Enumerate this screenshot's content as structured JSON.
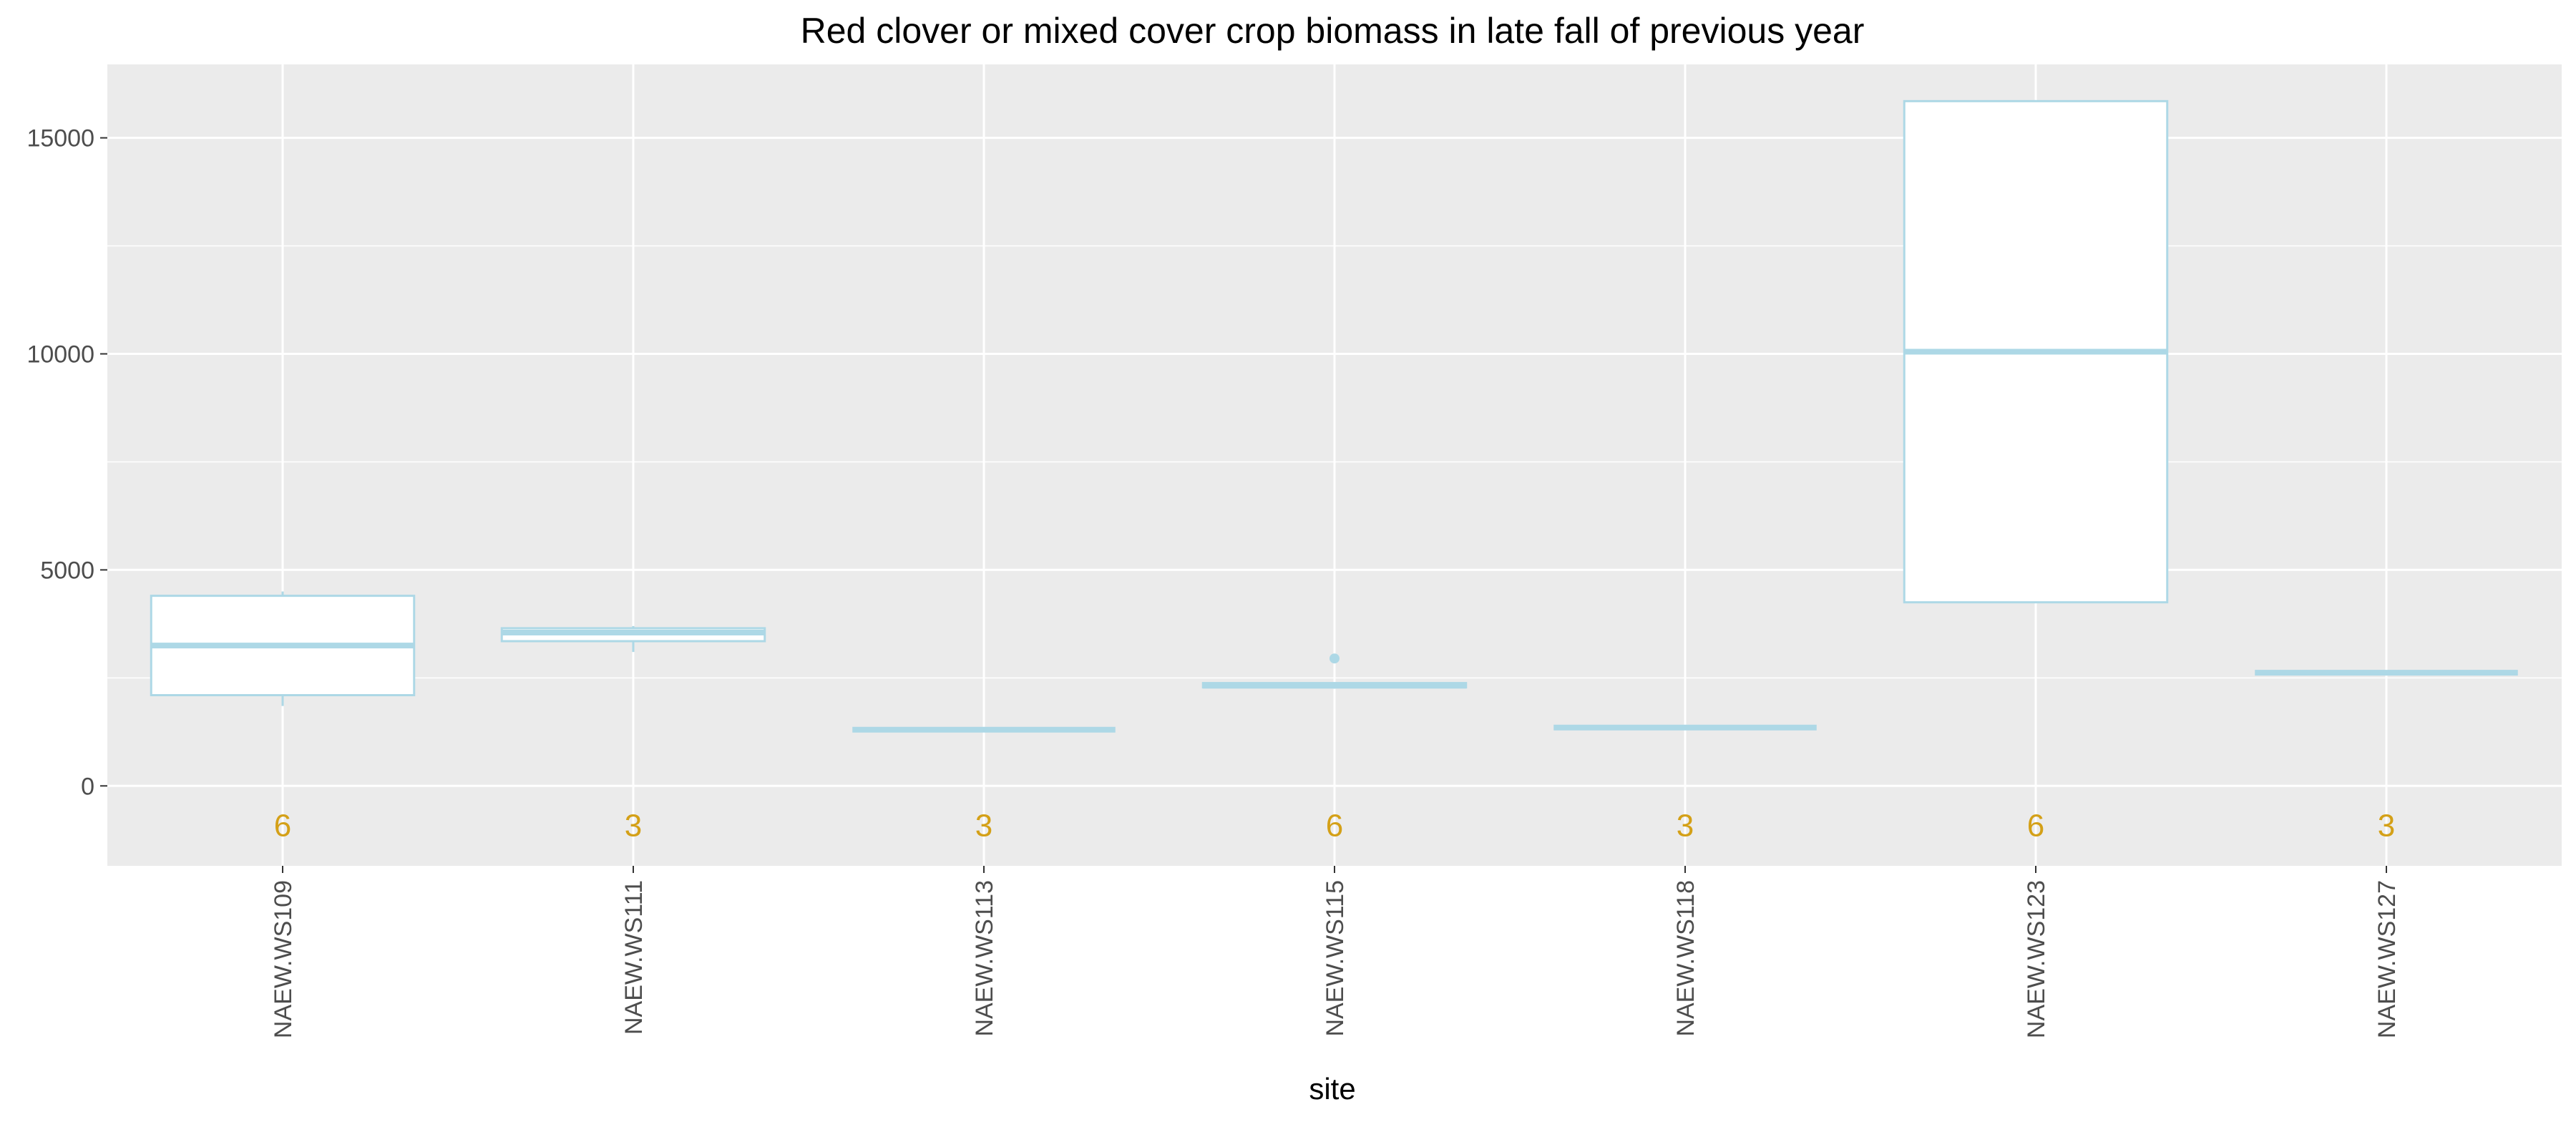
{
  "chart_data": {
    "type": "boxplot",
    "title": "Red clover or mixed cover crop biomass in late fall of previous year",
    "xlabel": "site",
    "ylabel": "",
    "ylim": [
      -1850,
      16700
    ],
    "yticks": [
      0,
      5000,
      10000,
      15000
    ],
    "ytick_labels": [
      "0",
      "5000",
      "10000",
      "15000"
    ],
    "grid": true,
    "box_color": "#add8e6",
    "box_fill": "#ffffff",
    "panel_color": "#ebebeb",
    "count_color": "#d4a017",
    "count_y": -900,
    "categories": [
      "NAEW.WS109",
      "NAEW.WS111",
      "NAEW.WS113",
      "NAEW.WS115",
      "NAEW.WS118",
      "NAEW.WS123",
      "NAEW.WS127"
    ],
    "boxes": [
      {
        "site": "NAEW.WS109",
        "lower_whisker": 1850,
        "q1": 2100,
        "median": 3250,
        "q3": 4400,
        "upper_whisker": 4500,
        "outliers": [],
        "n": "6"
      },
      {
        "site": "NAEW.WS111",
        "lower_whisker": 3100,
        "q1": 3350,
        "median": 3550,
        "q3": 3650,
        "upper_whisker": 3700,
        "outliers": [],
        "n": "3"
      },
      {
        "site": "NAEW.WS113",
        "lower_whisker": 1300,
        "q1": 1300,
        "median": 1300,
        "q3": 1300,
        "upper_whisker": 1300,
        "outliers": [],
        "n": "3"
      },
      {
        "site": "NAEW.WS115",
        "lower_whisker": 2250,
        "q1": 2280,
        "median": 2320,
        "q3": 2380,
        "upper_whisker": 2400,
        "outliers": [
          2950
        ],
        "n": "6"
      },
      {
        "site": "NAEW.WS118",
        "lower_whisker": 1350,
        "q1": 1350,
        "median": 1350,
        "q3": 1350,
        "upper_whisker": 1350,
        "outliers": [],
        "n": "3"
      },
      {
        "site": "NAEW.WS123",
        "lower_whisker": 4250,
        "q1": 4250,
        "median": 10050,
        "q3": 15850,
        "upper_whisker": 15850,
        "outliers": [],
        "n": "6"
      },
      {
        "site": "NAEW.WS127",
        "lower_whisker": 2620,
        "q1": 2620,
        "median": 2620,
        "q3": 2620,
        "upper_whisker": 2620,
        "outliers": [],
        "n": "3"
      }
    ]
  }
}
